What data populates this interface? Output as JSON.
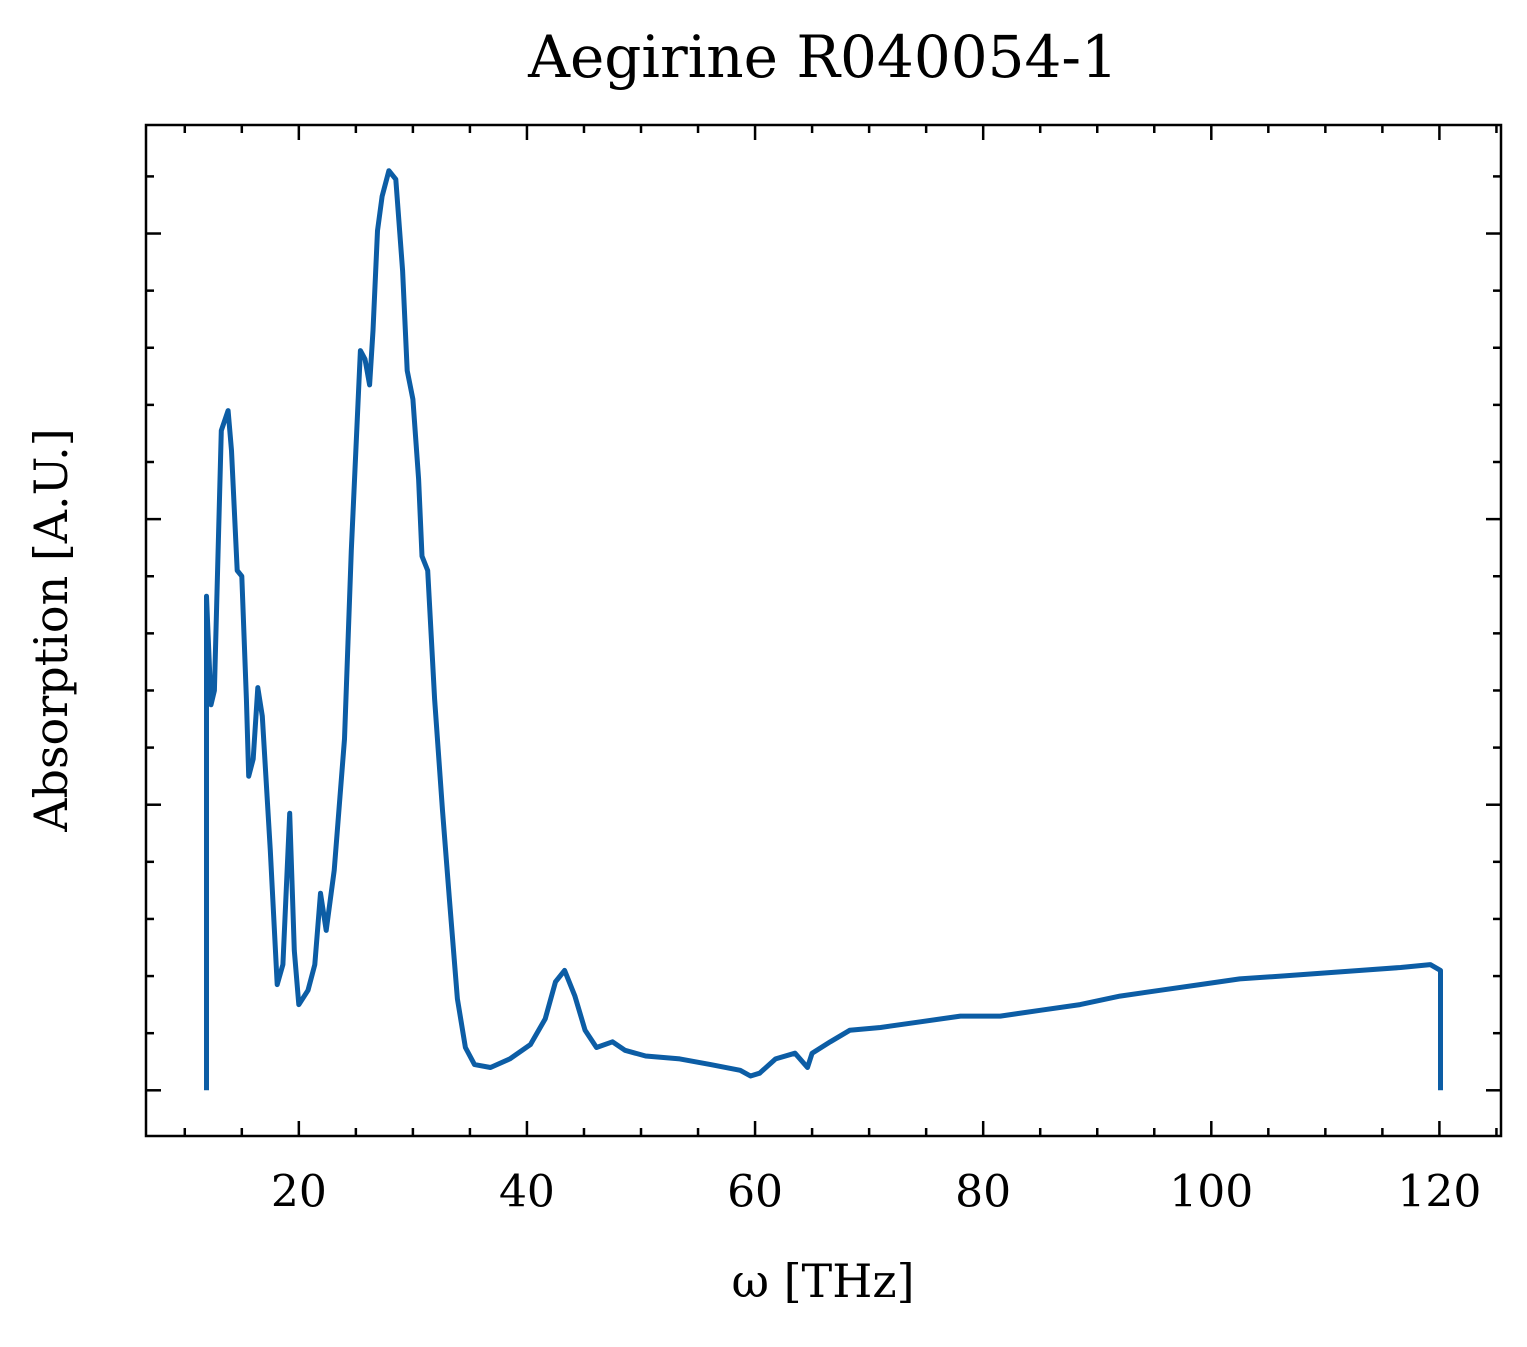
{
  "chart_data": {
    "type": "line",
    "title": "Aegirine R040054-1",
    "xlabel": "ω [THz]",
    "ylabel": "Absorption [A.U.]",
    "xlim": [
      6.6,
      125.4
    ],
    "ylim": [
      -0.16,
      3.38
    ],
    "xticks": [
      20,
      40,
      60,
      80,
      100,
      120
    ],
    "xminorticks": [
      10,
      15,
      25,
      30,
      35,
      45,
      50,
      55,
      65,
      70,
      75,
      85,
      90,
      95,
      105,
      110,
      115,
      125
    ],
    "yticks": [
      0,
      1,
      2,
      3
    ],
    "yminorticks": [
      0.2,
      0.4,
      0.6,
      0.8,
      1.2,
      1.4,
      1.6,
      1.8,
      2.2,
      2.4,
      2.6,
      2.8,
      3.2
    ],
    "ytick_labels": false,
    "grid": false,
    "series": [
      {
        "color": "#0c5da5",
        "x": [
          11.9,
          11.9,
          12.3,
          12.6,
          13.2,
          13.8,
          14.1,
          14.6,
          15.0,
          15.4,
          15.6,
          16.0,
          16.4,
          16.8,
          17.5,
          18.1,
          18.6,
          19.2,
          19.6,
          20.0,
          20.8,
          21.4,
          21.9,
          22.4,
          23.1,
          24.0,
          24.6,
          25.4,
          25.8,
          26.2,
          26.5,
          26.9,
          27.3,
          27.9,
          28.5,
          29.1,
          29.5,
          30.0,
          30.5,
          30.8,
          31.3,
          31.9,
          32.6,
          33.2,
          33.9,
          34.6,
          35.4,
          36.8,
          38.5,
          40.3,
          41.6,
          42.5,
          43.3,
          44.2,
          45.1,
          46.1,
          47.5,
          48.6,
          50.4,
          53.4,
          56.1,
          58.7,
          59.6,
          60.4,
          61.8,
          63.5,
          64.6,
          65.0,
          66.6,
          68.3,
          71.0,
          74.5,
          78.0,
          81.5,
          85.0,
          88.5,
          92.0,
          95.5,
          99.0,
          102.5,
          106.1,
          109.6,
          113.1,
          116.6,
          119.2,
          120.1,
          120.1
        ],
        "values": [
          0,
          1.73,
          1.35,
          1.4,
          2.31,
          2.38,
          2.24,
          1.82,
          1.8,
          1.37,
          1.1,
          1.16,
          1.41,
          1.31,
          0.84,
          0.37,
          0.44,
          0.97,
          0.49,
          0.3,
          0.35,
          0.44,
          0.69,
          0.56,
          0.77,
          1.23,
          1.89,
          2.59,
          2.56,
          2.47,
          2.66,
          3.01,
          3.13,
          3.22,
          3.19,
          2.87,
          2.52,
          2.42,
          2.14,
          1.87,
          1.82,
          1.37,
          0.98,
          0.67,
          0.32,
          0.15,
          0.09,
          0.08,
          0.11,
          0.16,
          0.25,
          0.38,
          0.42,
          0.33,
          0.21,
          0.15,
          0.17,
          0.14,
          0.12,
          0.11,
          0.09,
          0.07,
          0.05,
          0.06,
          0.11,
          0.13,
          0.08,
          0.13,
          0.17,
          0.21,
          0.22,
          0.24,
          0.26,
          0.26,
          0.28,
          0.3,
          0.33,
          0.35,
          0.37,
          0.39,
          0.4,
          0.41,
          0.42,
          0.43,
          0.44,
          0.42,
          0
        ]
      }
    ]
  }
}
